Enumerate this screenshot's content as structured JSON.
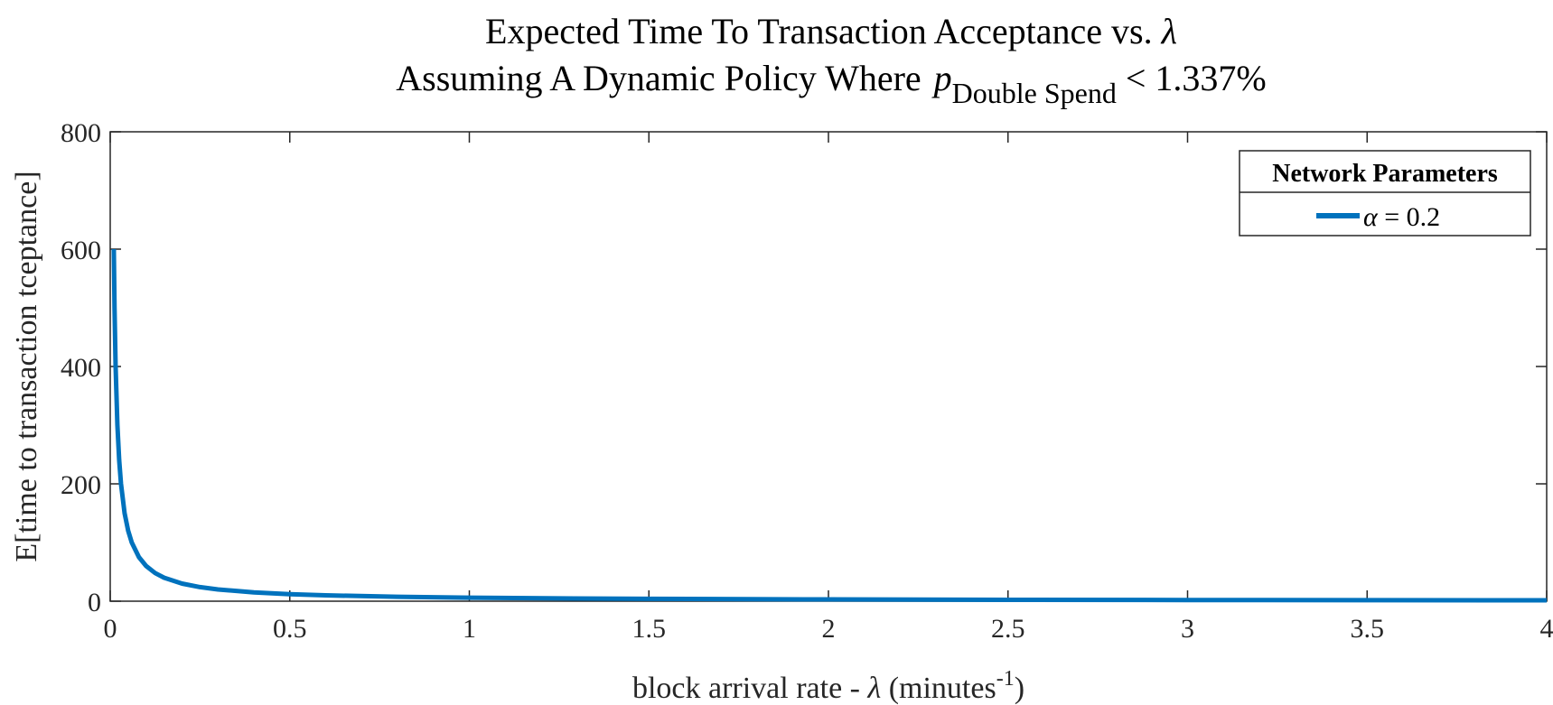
{
  "chart_data": {
    "type": "line",
    "title_line1_prefix": "Expected Time To Transaction Acceptance vs.",
    "title_line1_symbol": "λ",
    "title_line2_prefix": "Assuming A Dynamic Policy Where",
    "title_line2_var": "p",
    "title_line2_subscript": "Double Spend",
    "title_line2_suffix": "<  1.337%",
    "xlabel_prefix": "block arrival rate -",
    "xlabel_symbol": "λ",
    "xlabel_unit": "(minutes",
    "xlabel_exponent": "-1",
    "xlabel_close": ")",
    "ylabel": "E[time to transaction tceptance]",
    "xlim": [
      0,
      4
    ],
    "ylim": [
      0,
      800
    ],
    "xticks": [
      "0",
      "0.5",
      "1",
      "1.5",
      "2",
      "2.5",
      "3",
      "3.5",
      "4"
    ],
    "xtick_values": [
      0,
      0.5,
      1,
      1.5,
      2,
      2.5,
      3,
      3.5,
      4
    ],
    "yticks": [
      "0",
      "200",
      "400",
      "600",
      "800"
    ],
    "ytick_values": [
      0,
      200,
      400,
      600,
      800
    ],
    "grid": false,
    "legend_position": "top-right",
    "legend_title": "Network Parameters",
    "series": [
      {
        "name": "α = 0.2",
        "name_symbol": "α",
        "name_rest": " = 0.2",
        "color": "#0072BD",
        "x": [
          0.01,
          0.012,
          0.015,
          0.02,
          0.025,
          0.03,
          0.04,
          0.05,
          0.06,
          0.08,
          0.1,
          0.125,
          0.15,
          0.2,
          0.25,
          0.3,
          0.4,
          0.5,
          0.6,
          0.8,
          1.0,
          1.25,
          1.5,
          2.0,
          2.5,
          3.0,
          3.5,
          4.0
        ],
        "y": [
          600,
          500,
          400,
          300,
          240,
          200,
          150,
          120,
          100,
          75,
          60,
          48,
          40,
          30,
          24,
          20,
          15,
          12,
          10,
          7.5,
          6,
          4.8,
          4,
          3,
          2.4,
          2,
          1.7,
          1.5
        ]
      }
    ]
  }
}
